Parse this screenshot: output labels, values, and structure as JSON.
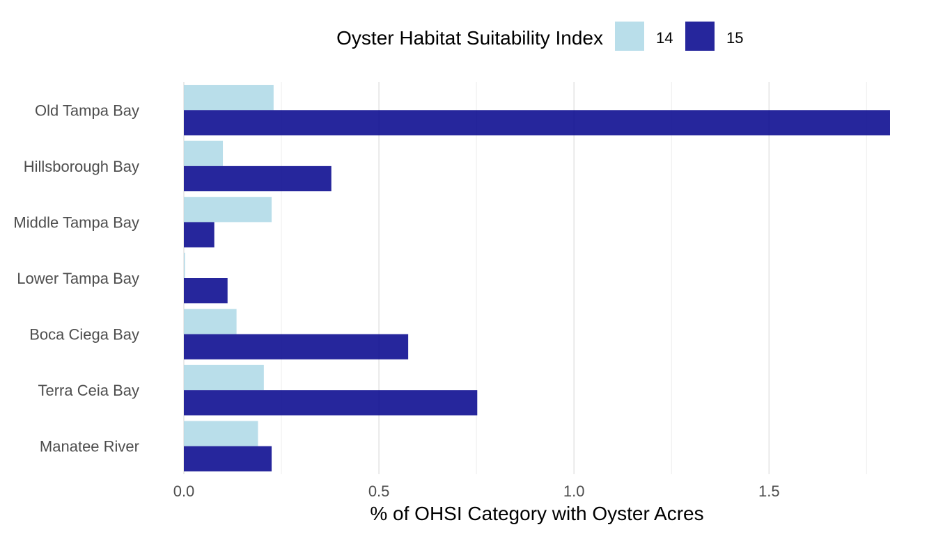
{
  "chart_data": {
    "type": "bar",
    "orientation": "horizontal",
    "categories": [
      "Old Tampa Bay",
      "Hillsborough Bay",
      "Middle Tampa Bay",
      "Lower Tampa Bay",
      "Boca Ciega Bay",
      "Terra Ceia Bay",
      "Manatee River"
    ],
    "series": [
      {
        "name": "14",
        "color": "#add8e6",
        "values": [
          0.23,
          0.1,
          0.225,
          0.003,
          0.135,
          0.205,
          0.19
        ]
      },
      {
        "name": "15",
        "color": "#00008b",
        "values": [
          1.81,
          0.378,
          0.078,
          0.112,
          0.575,
          0.752,
          0.225
        ]
      }
    ],
    "xlabel": "% of OHSI Category with Oyster Acres",
    "ylabel": "",
    "xlim": [
      0,
      1.81
    ],
    "xticks": [
      0.0,
      0.5,
      1.0,
      1.5
    ],
    "xtick_labels": [
      "0.0",
      "0.5",
      "1.0",
      "1.5"
    ],
    "grid": "vertical",
    "legend": {
      "title": "Oyster Habitat Suitability Index",
      "position": "top",
      "labels": [
        "14",
        "15"
      ]
    }
  }
}
